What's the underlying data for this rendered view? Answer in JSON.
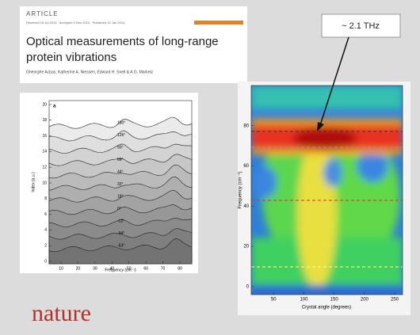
{
  "header": {
    "kicker": "ARTICLE",
    "dates": "Received 16 Jul 2013 · Accepted 9 Dec 2013 · Published 16 Jan 2014",
    "title_lines": [
      "Optical measurements of long-range",
      "protein vibrations"
    ],
    "authors": "Gheorghe Acbas, Katherine A. Niessen, Edward H. Snell & A.G. Markelz"
  },
  "logo": "nature",
  "annotation": "~ 2.1 THz",
  "left_plot": {
    "panel": "a",
    "xlabel": "Frequency (cm⁻¹)",
    "ylabel": "Index (a.u.)",
    "xlim": [
      3,
      87
    ],
    "ylim": [
      -0.3,
      20.5
    ],
    "xticks": [
      10,
      20,
      30,
      40,
      50,
      60,
      70,
      80
    ],
    "yticks": [
      0,
      2,
      4,
      6,
      8,
      10,
      12,
      14,
      16,
      18,
      20
    ],
    "curve_labels": [
      "180°",
      "126°",
      "93°",
      "69°",
      "44°",
      "33°",
      "18°",
      "0°",
      "-12°",
      "-34°",
      "-63°"
    ]
  },
  "right_plot": {
    "xlabel": "Crystal angle (degrees)",
    "ylabel": "Frequency (cm⁻¹)",
    "xlim": [
      13,
      263
    ],
    "ylim": [
      -4,
      100
    ],
    "xticks": [
      50,
      100,
      150,
      200,
      250
    ],
    "yticks": [
      0,
      20,
      40,
      60,
      80
    ]
  }
}
